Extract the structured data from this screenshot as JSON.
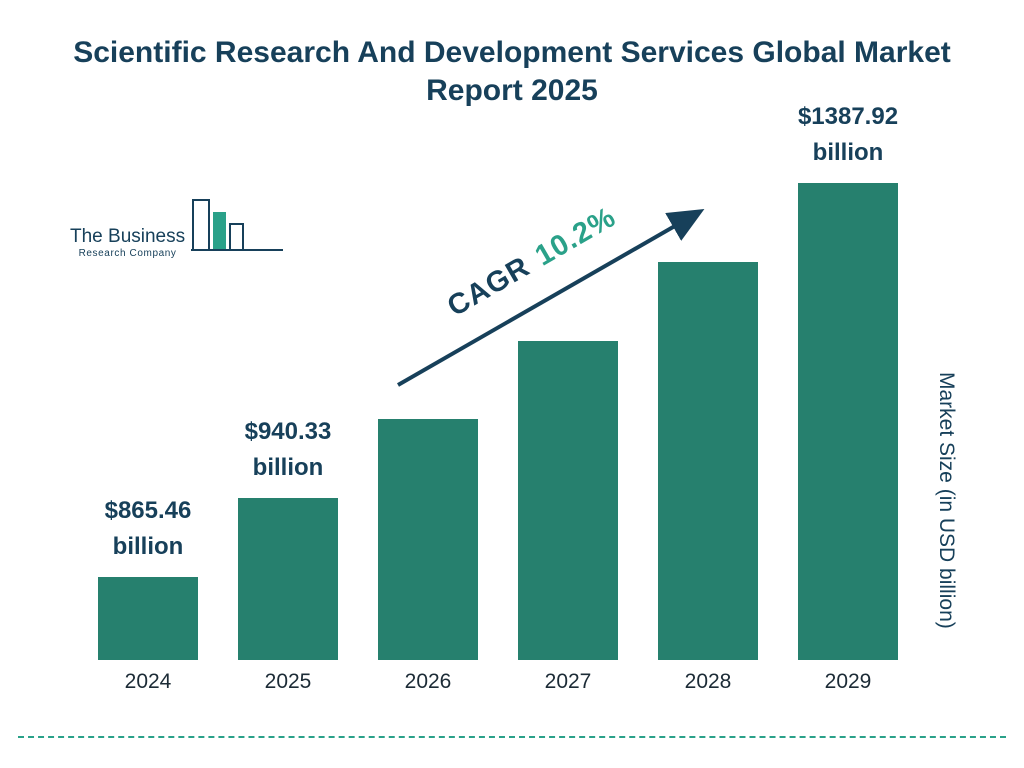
{
  "title": "Scientific Research And Development Services Global Market Report 2025",
  "logo": {
    "line1": "The Business",
    "line2": "Research Company"
  },
  "cagr": {
    "label": "CAGR",
    "value": "10.2%"
  },
  "chart_data": {
    "type": "bar",
    "title": "Scientific Research And Development Services Global Market Report 2025",
    "categories": [
      "2024",
      "2025",
      "2026",
      "2027",
      "2028",
      "2029"
    ],
    "values": [
      865.46,
      940.33,
      1036.24,
      1141.94,
      1258.42,
      1387.92
    ],
    "value_labels": [
      {
        "amount": "$865.46",
        "unit": "billion"
      },
      {
        "amount": "$940.33",
        "unit": "billion"
      },
      null,
      null,
      null,
      {
        "amount": "$1387.92",
        "unit": "billion"
      }
    ],
    "cagr": "10.2%",
    "xlabel": "",
    "ylabel": "Market Size (in USD billion)",
    "legend": "none",
    "grid": false
  },
  "colors": {
    "navy": "#17405a",
    "bar": "#26806e",
    "teal": "#2aa189",
    "tick": "#1c2b36"
  }
}
